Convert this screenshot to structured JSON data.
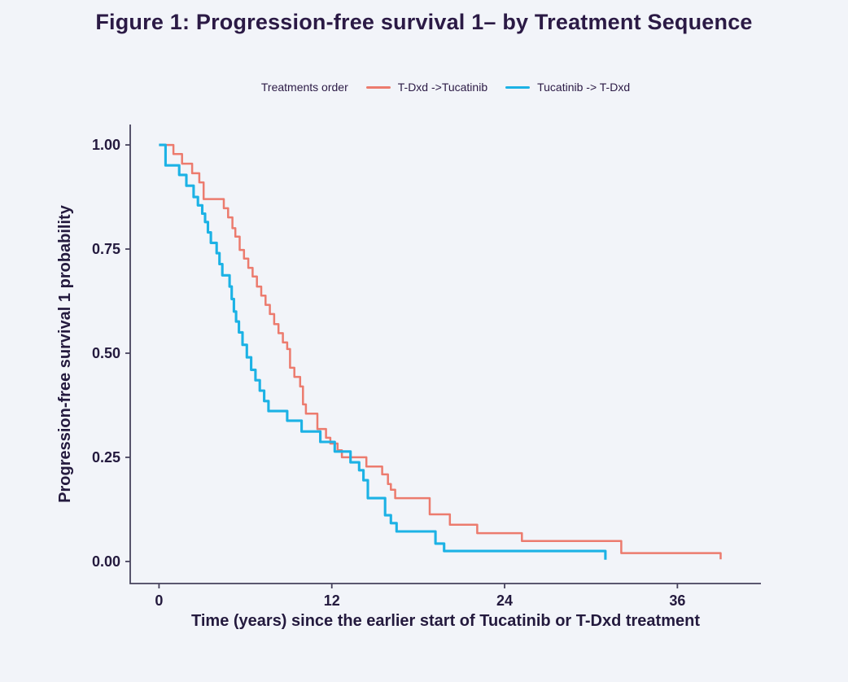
{
  "chart_data": {
    "type": "line",
    "subtype": "kaplan-meier-step-curve",
    "title": "Figure 1: Progression-free survival 1– by Treatment Sequence",
    "xlabel": "Time (years) since the earlier start of Tucatinib or T-Dxd treatment",
    "ylabel": "Progression-free survival 1 probability",
    "legend_title": "Treatments order",
    "legend_position": "top-center",
    "grid": false,
    "xlim": [
      -2.0,
      41.8
    ],
    "ylim": [
      -0.053,
      1.049
    ],
    "xticks": [
      0,
      12,
      24,
      36
    ],
    "xtick_labels": [
      "0",
      "12",
      "24",
      "36"
    ],
    "yticks": [
      0.0,
      0.25,
      0.5,
      0.75,
      1.0
    ],
    "ytick_labels": [
      "0.00",
      "0.25",
      "0.50",
      "0.75",
      "1.00"
    ],
    "colors": {
      "axis": "#46425c",
      "text": "#241a3e",
      "background": "#f2f4f9"
    },
    "series": [
      {
        "name": "T-Dxd ->Tucatinib",
        "color": "#ec7b6e",
        "line_width": 2.5,
        "step_points": [
          [
            0.0,
            1.0
          ],
          [
            1.0,
            0.978
          ],
          [
            1.6,
            0.955
          ],
          [
            2.3,
            0.932
          ],
          [
            2.8,
            0.91
          ],
          [
            3.1,
            0.87
          ],
          [
            4.5,
            0.848
          ],
          [
            4.8,
            0.826
          ],
          [
            5.1,
            0.8
          ],
          [
            5.3,
            0.78
          ],
          [
            5.6,
            0.748
          ],
          [
            5.9,
            0.727
          ],
          [
            6.2,
            0.705
          ],
          [
            6.5,
            0.684
          ],
          [
            6.8,
            0.66
          ],
          [
            7.1,
            0.638
          ],
          [
            7.4,
            0.616
          ],
          [
            7.7,
            0.594
          ],
          [
            8.0,
            0.57
          ],
          [
            8.3,
            0.548
          ],
          [
            8.6,
            0.526
          ],
          [
            8.9,
            0.51
          ],
          [
            9.1,
            0.465
          ],
          [
            9.4,
            0.443
          ],
          [
            9.8,
            0.42
          ],
          [
            10.0,
            0.377
          ],
          [
            10.2,
            0.355
          ],
          [
            11.0,
            0.318
          ],
          [
            11.6,
            0.297
          ],
          [
            11.9,
            0.283
          ],
          [
            12.4,
            0.267
          ],
          [
            12.7,
            0.25
          ],
          [
            14.4,
            0.228
          ],
          [
            15.5,
            0.209
          ],
          [
            15.9,
            0.186
          ],
          [
            16.1,
            0.172
          ],
          [
            16.4,
            0.152
          ],
          [
            18.8,
            0.113
          ],
          [
            20.2,
            0.088
          ],
          [
            22.1,
            0.068
          ],
          [
            25.2,
            0.049
          ],
          [
            32.1,
            0.02
          ],
          [
            39.0,
            0.005
          ]
        ]
      },
      {
        "name": "Tucatinib -> T-Dxd",
        "color": "#1cb2e5",
        "line_width": 3.1,
        "step_points": [
          [
            0.0,
            1.0
          ],
          [
            0.45,
            0.951
          ],
          [
            1.4,
            0.928
          ],
          [
            1.9,
            0.902
          ],
          [
            2.4,
            0.875
          ],
          [
            2.7,
            0.855
          ],
          [
            3.0,
            0.835
          ],
          [
            3.2,
            0.815
          ],
          [
            3.4,
            0.79
          ],
          [
            3.6,
            0.765
          ],
          [
            4.0,
            0.74
          ],
          [
            4.2,
            0.714
          ],
          [
            4.4,
            0.687
          ],
          [
            4.9,
            0.66
          ],
          [
            5.05,
            0.63
          ],
          [
            5.2,
            0.6
          ],
          [
            5.35,
            0.576
          ],
          [
            5.55,
            0.55
          ],
          [
            5.8,
            0.52
          ],
          [
            6.1,
            0.49
          ],
          [
            6.4,
            0.46
          ],
          [
            6.7,
            0.435
          ],
          [
            7.0,
            0.41
          ],
          [
            7.3,
            0.385
          ],
          [
            7.6,
            0.361
          ],
          [
            8.9,
            0.338
          ],
          [
            9.9,
            0.312
          ],
          [
            11.2,
            0.287
          ],
          [
            12.2,
            0.264
          ],
          [
            13.3,
            0.238
          ],
          [
            13.9,
            0.219
          ],
          [
            14.2,
            0.195
          ],
          [
            14.5,
            0.152
          ],
          [
            15.7,
            0.111
          ],
          [
            16.1,
            0.092
          ],
          [
            16.5,
            0.072
          ],
          [
            19.2,
            0.043
          ],
          [
            19.8,
            0.025
          ],
          [
            31.0,
            0.004
          ]
        ]
      }
    ]
  }
}
